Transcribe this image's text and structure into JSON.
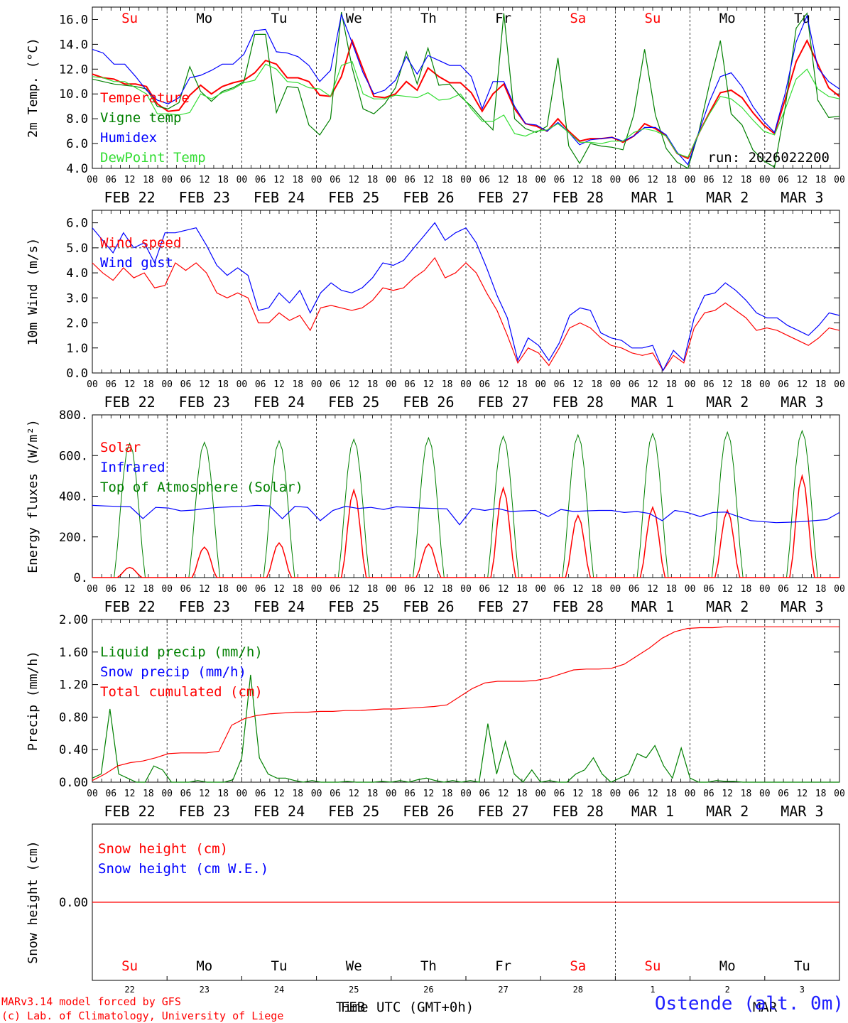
{
  "footer": {
    "credit_line1": "MARv3.14 model forced by GFS",
    "credit_line2": "(c) Lab. of Climatology, University of Liege",
    "station": "Ostende (alt. 0m)",
    "xaxis_label": "Time UTC (GMT+0h)",
    "month_label": "FEB",
    "month_label2": "MAR"
  },
  "colors": {
    "red": "#ff0000",
    "green": "#008000",
    "blue": "#0000ff",
    "light_green": "#33dd33"
  },
  "chart_data": [
    {
      "type": "line",
      "ylabel": "2m Temp. (°C)",
      "ylim": [
        4.0,
        17.0
      ],
      "yticks": [
        "4.0",
        "6.0",
        "8.0",
        "10.0",
        "12.0",
        "14.0",
        "16.0"
      ],
      "ytick_values": [
        4,
        6,
        8,
        10,
        12,
        14,
        16
      ],
      "day_labels": [
        "Su",
        "Mo",
        "Tu",
        "We",
        "Th",
        "Fr",
        "Sa",
        "Su",
        "Mo",
        "Tu"
      ],
      "day_label_colors": [
        "red",
        "black",
        "black",
        "black",
        "black",
        "black",
        "red",
        "red",
        "black",
        "black"
      ],
      "date_labels": [
        "FEB 22",
        "FEB 23",
        "FEB 24",
        "FEB 25",
        "FEB 26",
        "FEB 27",
        "FEB 28",
        "MAR  1",
        "MAR  2",
        "MAR  3"
      ],
      "hour_ticks": [
        "00",
        "06",
        "12",
        "18"
      ],
      "annotation": "run: 2026022200",
      "legend": [
        "Temperature",
        "Vigne temp",
        "Humidex",
        "DewPoint Temp"
      ],
      "series": [
        {
          "name": "Temperature",
          "color": "red",
          "values": [
            11.6,
            11.3,
            11.2,
            10.8,
            10.8,
            10.6,
            9.2,
            8.6,
            8.7,
            9.9,
            10.7,
            10.0,
            10.6,
            10.9,
            11.1,
            11.7,
            12.7,
            12.4,
            11.3,
            11.3,
            11.0,
            9.9,
            9.8,
            11.4,
            14.3,
            12.0,
            9.8,
            9.7,
            10.0,
            11.0,
            10.3,
            12.1,
            11.4,
            10.9,
            10.9,
            10.1,
            8.6,
            10.0,
            10.8,
            8.8,
            7.6,
            7.4,
            7.0,
            8.0,
            7.0,
            6.2,
            6.4,
            6.4,
            6.5,
            6.1,
            6.6,
            7.6,
            7.2,
            6.6,
            5.2,
            4.8,
            6.8,
            8.5,
            10.1,
            10.3,
            9.7,
            8.5,
            7.5,
            6.8,
            9.6,
            12.6,
            14.3,
            12.4,
            10.5,
            9.8
          ]
        },
        {
          "name": "Vigne temp",
          "color": "green",
          "values": [
            11.2,
            11.0,
            10.8,
            10.7,
            10.6,
            10.4,
            9.0,
            8.8,
            9.3,
            12.2,
            10.2,
            9.4,
            10.2,
            10.5,
            11.0,
            14.8,
            14.8,
            8.5,
            10.6,
            10.5,
            7.5,
            6.7,
            8.0,
            16.6,
            12.1,
            8.8,
            8.4,
            9.2,
            10.5,
            13.4,
            10.8,
            13.7,
            10.7,
            10.8,
            9.8,
            9.0,
            8.0,
            7.1,
            16.5,
            8.0,
            7.2,
            6.9,
            7.4,
            12.9,
            5.8,
            4.4,
            6.0,
            5.8,
            5.7,
            5.5,
            8.3,
            13.6,
            8.3,
            5.6,
            4.5,
            4.0,
            6.9,
            10.8,
            14.3,
            8.4,
            7.5,
            5.5,
            4.6,
            4.1,
            9.0,
            15.3,
            16.5,
            9.5,
            8.1,
            8.2
          ]
        },
        {
          "name": "Humidex",
          "color": "blue",
          "values": [
            13.6,
            13.3,
            12.4,
            12.4,
            11.4,
            10.3,
            9.5,
            9.2,
            9.7,
            11.3,
            11.5,
            11.9,
            12.4,
            12.4,
            13.2,
            15.1,
            15.2,
            13.4,
            13.3,
            13.0,
            12.3,
            11.0,
            11.9,
            16.4,
            14.1,
            11.7,
            10.0,
            10.3,
            11.1,
            13.0,
            11.6,
            13.1,
            12.7,
            12.3,
            12.3,
            11.4,
            8.8,
            11.0,
            11.0,
            9.0,
            7.6,
            7.5,
            7.0,
            7.7,
            6.9,
            5.9,
            6.3,
            6.4,
            6.5,
            6.2,
            6.6,
            7.3,
            7.3,
            6.7,
            5.3,
            4.3,
            6.9,
            9.4,
            11.4,
            11.7,
            10.6,
            9.0,
            7.8,
            6.9,
            10.1,
            14.2,
            16.3,
            12.1,
            11.0,
            10.4
          ]
        },
        {
          "name": "DewPoint Temp",
          "color": "light_green",
          "values": [
            11.4,
            11.3,
            11.0,
            11.0,
            10.5,
            10.0,
            8.4,
            8.4,
            8.3,
            8.5,
            10.0,
            9.6,
            10.1,
            10.4,
            10.9,
            11.1,
            12.4,
            12.0,
            11.0,
            10.9,
            10.5,
            10.4,
            9.8,
            12.3,
            12.6,
            10.0,
            9.6,
            9.6,
            9.9,
            9.8,
            9.7,
            10.1,
            9.5,
            9.6,
            10.0,
            8.8,
            7.8,
            7.8,
            8.3,
            6.8,
            6.6,
            7.0,
            7.1,
            7.6,
            6.9,
            6.1,
            6.1,
            6.0,
            6.2,
            6.2,
            6.9,
            7.2,
            7.0,
            6.6,
            5.2,
            4.9,
            6.8,
            8.4,
            9.8,
            9.6,
            8.9,
            7.9,
            7.0,
            6.7,
            8.8,
            11.2,
            12.0,
            10.4,
            9.8,
            9.6
          ]
        }
      ]
    },
    {
      "type": "line",
      "ylabel": "10m Wind (m/s)",
      "ylim": [
        0.0,
        6.5
      ],
      "yticks": [
        "0.0",
        "1.0",
        "2.0",
        "3.0",
        "4.0",
        "5.0",
        "6.0"
      ],
      "ytick_values": [
        0,
        1,
        2,
        3,
        4,
        5,
        6
      ],
      "hline": 5.0,
      "hour_ticks": [
        "00",
        "06",
        "12",
        "18"
      ],
      "date_labels": [
        "FEB 22",
        "FEB 23",
        "FEB 24",
        "FEB 25",
        "FEB 26",
        "FEB 27",
        "FEB 28",
        "MAR  1",
        "MAR  2",
        "MAR  3"
      ],
      "legend": [
        "Wind speed",
        "Wind gust"
      ],
      "series": [
        {
          "name": "Wind speed",
          "color": "red",
          "values": [
            4.4,
            4.0,
            3.7,
            4.2,
            3.8,
            4.0,
            3.4,
            3.5,
            4.4,
            4.1,
            4.4,
            4.0,
            3.2,
            3.0,
            3.2,
            3.0,
            2.0,
            2.0,
            2.4,
            2.1,
            2.3,
            1.7,
            2.6,
            2.7,
            2.6,
            2.5,
            2.6,
            2.9,
            3.4,
            3.3,
            3.4,
            3.8,
            4.1,
            4.6,
            3.8,
            4.0,
            4.4,
            4.0,
            3.2,
            2.5,
            1.5,
            0.4,
            1.0,
            0.8,
            0.3,
            1.0,
            1.8,
            2.0,
            1.8,
            1.4,
            1.1,
            1.0,
            0.8,
            0.7,
            0.8,
            0.1,
            0.7,
            0.4,
            1.8,
            2.4,
            2.5,
            2.8,
            2.5,
            2.2,
            1.7,
            1.8,
            1.7,
            1.5,
            1.3,
            1.1,
            1.4,
            1.8,
            1.7
          ]
        },
        {
          "name": "Wind gust",
          "color": "blue",
          "values": [
            5.8,
            5.3,
            4.8,
            5.6,
            5.0,
            5.2,
            4.4,
            5.6,
            5.6,
            5.7,
            5.8,
            5.1,
            4.3,
            3.9,
            4.2,
            3.9,
            2.5,
            2.6,
            3.2,
            2.8,
            3.3,
            2.4,
            3.2,
            3.6,
            3.3,
            3.2,
            3.4,
            3.8,
            4.4,
            4.3,
            4.5,
            5.0,
            5.5,
            6.0,
            5.3,
            5.6,
            5.8,
            5.2,
            4.2,
            3.1,
            2.2,
            0.5,
            1.4,
            1.1,
            0.5,
            1.2,
            2.3,
            2.6,
            2.5,
            1.6,
            1.4,
            1.3,
            1.0,
            1.0,
            1.1,
            0.1,
            0.9,
            0.5,
            2.2,
            3.1,
            3.2,
            3.6,
            3.3,
            2.9,
            2.4,
            2.2,
            2.2,
            1.9,
            1.7,
            1.5,
            1.9,
            2.4,
            2.3
          ]
        }
      ]
    },
    {
      "type": "line",
      "ylabel": "Energy fluxes (W/m²)",
      "ylim": [
        0,
        800
      ],
      "yticks": [
        "0.",
        "200.",
        "400.",
        "600.",
        "800."
      ],
      "ytick_values": [
        0,
        200,
        400,
        600,
        800
      ],
      "hour_ticks": [
        "00",
        "06",
        "12",
        "18"
      ],
      "date_labels": [
        "FEB 22",
        "FEB 23",
        "FEB 24",
        "FEB 25",
        "FEB 26",
        "FEB 27",
        "FEB 28",
        "MAR  1",
        "MAR  2",
        "MAR  3"
      ],
      "legend": [
        "Solar",
        "Infrared",
        "Top of Atmosphere (Solar)"
      ],
      "series": [
        {
          "name": "Solar",
          "color": "red",
          "peaks": [
            50,
            150,
            170,
            430,
            165,
            440,
            305,
            345,
            330,
            500
          ]
        },
        {
          "name": "Infrared",
          "color": "blue",
          "values": [
            355,
            352,
            350,
            348,
            290,
            345,
            342,
            328,
            332,
            340,
            345,
            348,
            350,
            355,
            352,
            290,
            350,
            345,
            280,
            330,
            350,
            340,
            345,
            335,
            348,
            345,
            342,
            340,
            338,
            260,
            340,
            330,
            340,
            325,
            328,
            330,
            300,
            335,
            325,
            328,
            330,
            330,
            320,
            325,
            315,
            280,
            330,
            320,
            300,
            320,
            322,
            300,
            280,
            275,
            270,
            272,
            275,
            280,
            285,
            320
          ]
        },
        {
          "name": "Top of Atmosphere (Solar)",
          "color": "green",
          "peaks": [
            660,
            665,
            672,
            680,
            687,
            695,
            702,
            708,
            715,
            722
          ]
        }
      ]
    },
    {
      "type": "line",
      "ylabel": "Precip (mm/h)",
      "ylim": [
        0.0,
        2.0
      ],
      "yticks": [
        "0.00",
        "0.40",
        "0.80",
        "1.20",
        "1.60",
        "2.00"
      ],
      "ytick_values": [
        0,
        0.4,
        0.8,
        1.2,
        1.6,
        2.0
      ],
      "hour_ticks": [
        "00",
        "06",
        "12",
        "18"
      ],
      "date_labels": [
        "FEB 22",
        "FEB 23",
        "FEB 24",
        "FEB 25",
        "FEB 26",
        "FEB 27",
        "FEB 28",
        "MAR  1",
        "MAR  2",
        "MAR  3"
      ],
      "legend": [
        "Liquid precip (mm/h)",
        "Snow precip (mm/h)",
        "Total cumulated (cm)"
      ],
      "series": [
        {
          "name": "Liquid precip (mm/h)",
          "color": "green",
          "values": [
            0.05,
            0.1,
            0.9,
            0.1,
            0.05,
            0.0,
            0.0,
            0.2,
            0.15,
            0.0,
            0.0,
            0.0,
            0.02,
            0.0,
            0.0,
            0.0,
            0.03,
            0.3,
            1.32,
            0.3,
            0.1,
            0.05,
            0.05,
            0.02,
            0.0,
            0.02,
            0.0,
            0.0,
            0.0,
            0.01,
            0.0,
            0.0,
            0.0,
            0.01,
            0.0,
            0.02,
            0.0,
            0.03,
            0.05,
            0.02,
            0.0,
            0.02,
            0.0,
            0.02,
            0.0,
            0.72,
            0.1,
            0.5,
            0.1,
            0.0,
            0.15,
            0.0,
            0.02,
            0.0,
            0.0,
            0.1,
            0.15,
            0.3,
            0.1,
            0.0,
            0.05,
            0.1,
            0.35,
            0.3,
            0.45,
            0.2,
            0.05,
            0.42,
            0.05,
            0.0,
            0.0,
            0.02,
            0.01,
            0.01,
            0.0,
            0.0,
            0.0,
            0.0,
            0.0,
            0.0,
            0.0,
            0.0,
            0.0,
            0.0,
            0.0,
            0.0
          ]
        },
        {
          "name": "Snow precip (mm/h)",
          "color": "blue",
          "values": []
        },
        {
          "name": "Total cumulated (cm)",
          "color": "red",
          "values": [
            0.02,
            0.1,
            0.2,
            0.24,
            0.26,
            0.3,
            0.35,
            0.36,
            0.36,
            0.36,
            0.38,
            0.7,
            0.78,
            0.82,
            0.84,
            0.85,
            0.86,
            0.86,
            0.87,
            0.87,
            0.88,
            0.88,
            0.89,
            0.9,
            0.9,
            0.91,
            0.92,
            0.93,
            0.95,
            1.05,
            1.15,
            1.22,
            1.24,
            1.24,
            1.24,
            1.25,
            1.28,
            1.33,
            1.38,
            1.39,
            1.39,
            1.4,
            1.45,
            1.55,
            1.65,
            1.77,
            1.85,
            1.89,
            1.9,
            1.9,
            1.91,
            1.91,
            1.91,
            1.91,
            1.91,
            1.91,
            1.91,
            1.91,
            1.91,
            1.91
          ]
        }
      ]
    },
    {
      "type": "line",
      "ylabel": "Snow height (cm)",
      "ytick": "0.00",
      "ytick_value": 0,
      "legend": [
        "Snow height (cm)",
        "Snow height (cm W.E.)"
      ],
      "day_labels": [
        "Su",
        "Mo",
        "Tu",
        "We",
        "Th",
        "Fr",
        "Sa",
        "Su",
        "Mo",
        "Tu"
      ],
      "day_label_colors": [
        "red",
        "black",
        "black",
        "black",
        "black",
        "black",
        "red",
        "red",
        "black",
        "black"
      ],
      "day_numbers": [
        "22",
        "23",
        "24",
        "25",
        "26",
        "27",
        "28",
        "1",
        "2",
        "3"
      ],
      "series": [
        {
          "name": "Snow height (cm)",
          "color": "red",
          "values": [
            0,
            0
          ]
        },
        {
          "name": "Snow height (cm W.E.)",
          "color": "blue",
          "values": []
        }
      ]
    }
  ]
}
